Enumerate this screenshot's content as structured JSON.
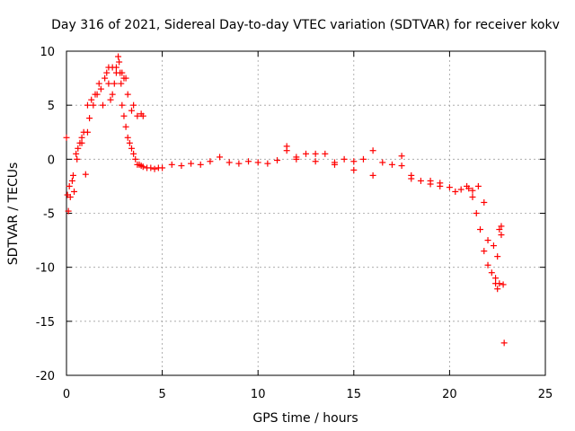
{
  "chart_data": {
    "type": "scatter",
    "title": "Day 316 of 2021, Sidereal Day-to-day VTEC variation (SDTVAR) for receiver kokv",
    "xlabel": "GPS time / hours",
    "ylabel": "SDTVAR / TECUs",
    "xlim": [
      0,
      25
    ],
    "ylim": [
      -20,
      10
    ],
    "xticks": [
      0,
      5,
      10,
      15,
      20,
      25
    ],
    "yticks": [
      -20,
      -15,
      -10,
      -5,
      0,
      5,
      10
    ],
    "grid": true,
    "marker": "+",
    "color": "#ff0000",
    "series": [
      {
        "name": "SDTVAR",
        "x": [
          0.0,
          0.05,
          0.1,
          0.15,
          0.2,
          0.3,
          0.35,
          0.4,
          0.5,
          0.55,
          0.6,
          0.7,
          0.8,
          0.9,
          1.0,
          1.1,
          1.2,
          1.3,
          1.4,
          1.5,
          1.6,
          1.7,
          1.8,
          1.9,
          2.0,
          2.1,
          2.2,
          2.3,
          2.4,
          2.5,
          2.6,
          2.7,
          2.75,
          2.8,
          2.85,
          2.9,
          3.0,
          3.1,
          3.2,
          3.3,
          3.4,
          3.5,
          3.6,
          3.7,
          3.8,
          3.9,
          4.0,
          4.2,
          4.4,
          4.6,
          4.8,
          5.0,
          5.5,
          6.0,
          6.5,
          7.0,
          7.5,
          8.0,
          8.5,
          9.0,
          9.5,
          10.0,
          10.5,
          11.0,
          11.5,
          12.0,
          12.5,
          13.0,
          13.5,
          14.0,
          14.5,
          15.0,
          15.5,
          16.0,
          16.5,
          17.0,
          17.5,
          18.0,
          18.5,
          19.0,
          19.5,
          20.0,
          20.3,
          20.6,
          20.9,
          21.2,
          21.4,
          21.6,
          21.8,
          22.0,
          22.2,
          22.4,
          22.6,
          22.8,
          22.85,
          2.9,
          3.1,
          3.4,
          3.7,
          3.9,
          4.0,
          1.1,
          0.8,
          2.2,
          2.4,
          2.6,
          3.0,
          3.2,
          3.5,
          11.5,
          12.0,
          13.0,
          14.0,
          15.0,
          16.0,
          17.5,
          18.0,
          19.0,
          19.5,
          21.0,
          21.2,
          21.5,
          21.8,
          22.0,
          22.3,
          22.5,
          22.7,
          22.4,
          22.5,
          22.6,
          22.7
        ],
        "y": [
          2.0,
          -3.3,
          -4.8,
          -2.5,
          -3.5,
          -2.0,
          -1.5,
          -3.0,
          0.5,
          0.0,
          1.0,
          1.5,
          2.0,
          2.5,
          -1.4,
          5.0,
          3.8,
          5.5,
          5.0,
          6.0,
          6.0,
          7.0,
          6.5,
          5.0,
          7.5,
          8.0,
          8.5,
          5.5,
          6.0,
          7.0,
          8.0,
          9.5,
          9.0,
          8.0,
          7.0,
          5.0,
          4.0,
          3.0,
          2.0,
          1.5,
          1.0,
          0.5,
          0.0,
          -0.5,
          -0.5,
          -0.6,
          -0.7,
          -0.8,
          -0.8,
          -0.9,
          -0.8,
          -0.8,
          -0.5,
          -0.6,
          -0.4,
          -0.5,
          -0.2,
          0.2,
          -0.3,
          -0.4,
          -0.2,
          -0.3,
          -0.4,
          -0.1,
          0.8,
          0.2,
          0.5,
          -0.2,
          0.5,
          -0.3,
          0.0,
          -0.2,
          0.0,
          0.8,
          -0.3,
          -0.5,
          -0.6,
          -1.5,
          -2.0,
          -2.3,
          -2.5,
          -2.6,
          -3.0,
          -2.8,
          -2.5,
          -3.5,
          -5.0,
          -6.5,
          -8.5,
          -9.8,
          -10.5,
          -11.0,
          -11.5,
          -11.6,
          -17.0,
          8.0,
          7.5,
          4.5,
          4.0,
          4.2,
          4.0,
          2.5,
          1.5,
          7.0,
          8.5,
          8.5,
          7.5,
          6.0,
          5.0,
          1.2,
          0.0,
          0.5,
          -0.5,
          -1.0,
          -1.5,
          0.3,
          -1.8,
          -2.0,
          -2.2,
          -2.7,
          -2.9,
          -2.5,
          -4.0,
          -7.5,
          -8.0,
          -9.0,
          -7.0,
          -11.5,
          -12.0,
          -6.5,
          -6.2
        ]
      }
    ]
  }
}
